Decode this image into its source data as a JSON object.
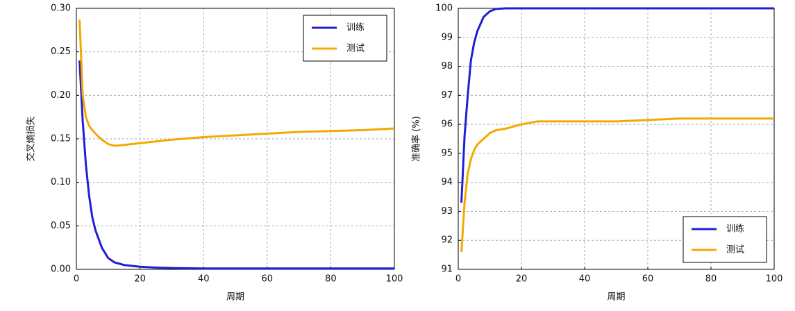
{
  "chart_data": [
    {
      "type": "line",
      "ylabel": "交叉熵损失",
      "xlabel": "周期",
      "x": [
        1,
        2,
        3,
        4,
        5,
        6,
        8,
        10,
        12,
        15,
        20,
        25,
        30,
        40,
        50,
        60,
        70,
        80,
        90,
        100
      ],
      "series": [
        {
          "name": "训练",
          "color": "#1f1fd6",
          "values": [
            0.24,
            0.17,
            0.12,
            0.085,
            0.06,
            0.045,
            0.025,
            0.013,
            0.008,
            0.005,
            0.003,
            0.002,
            0.0015,
            0.001,
            0.001,
            0.001,
            0.001,
            0.001,
            0.001,
            0.001
          ]
        },
        {
          "name": "测试",
          "color": "#f5a800",
          "values": [
            0.287,
            0.2,
            0.175,
            0.165,
            0.16,
            0.156,
            0.149,
            0.144,
            0.142,
            0.143,
            0.145,
            0.147,
            0.149,
            0.152,
            0.154,
            0.156,
            0.158,
            0.159,
            0.16,
            0.162
          ]
        }
      ],
      "xlim": [
        0,
        100
      ],
      "xticks": [
        0,
        20,
        40,
        60,
        80,
        100
      ],
      "ylim": [
        0,
        0.3
      ],
      "yticks": [
        {
          "value": 0,
          "label": "0.00"
        },
        {
          "value": 0.05,
          "label": "0.05"
        },
        {
          "value": 0.1,
          "label": "0.10"
        },
        {
          "value": 0.15,
          "label": "0.15"
        },
        {
          "value": 0.2,
          "label": "0.20"
        },
        {
          "value": 0.25,
          "label": "0.25"
        },
        {
          "value": 0.3,
          "label": "0.30"
        }
      ],
      "grid": true,
      "legend": "upper right"
    },
    {
      "type": "line",
      "ylabel": "准确率 (%)",
      "xlabel": "周期",
      "x": [
        1,
        2,
        3,
        4,
        5,
        6,
        8,
        10,
        12,
        15,
        20,
        25,
        30,
        40,
        50,
        60,
        70,
        80,
        90,
        100
      ],
      "series": [
        {
          "name": "训练",
          "color": "#1f1fd6",
          "values": [
            93.3,
            95.6,
            97,
            98.2,
            98.8,
            99.2,
            99.7,
            99.9,
            99.98,
            100,
            100,
            100,
            100,
            100,
            100,
            100,
            100,
            100,
            100,
            100
          ]
        },
        {
          "name": "测试",
          "color": "#f5a800",
          "values": [
            91.6,
            93.3,
            94.3,
            94.8,
            95.1,
            95.3,
            95.5,
            95.7,
            95.8,
            95.85,
            96,
            96.1,
            96.1,
            96.1,
            96.1,
            96.15,
            96.2,
            96.2,
            96.2,
            96.2
          ]
        }
      ],
      "xlim": [
        0,
        100
      ],
      "xticks": [
        0,
        20,
        40,
        60,
        80,
        100
      ],
      "ylim": [
        91,
        100
      ],
      "yticks": [
        91,
        92,
        93,
        94,
        95,
        96,
        97,
        98,
        99,
        100
      ],
      "grid": true,
      "legend": "lower right"
    }
  ]
}
